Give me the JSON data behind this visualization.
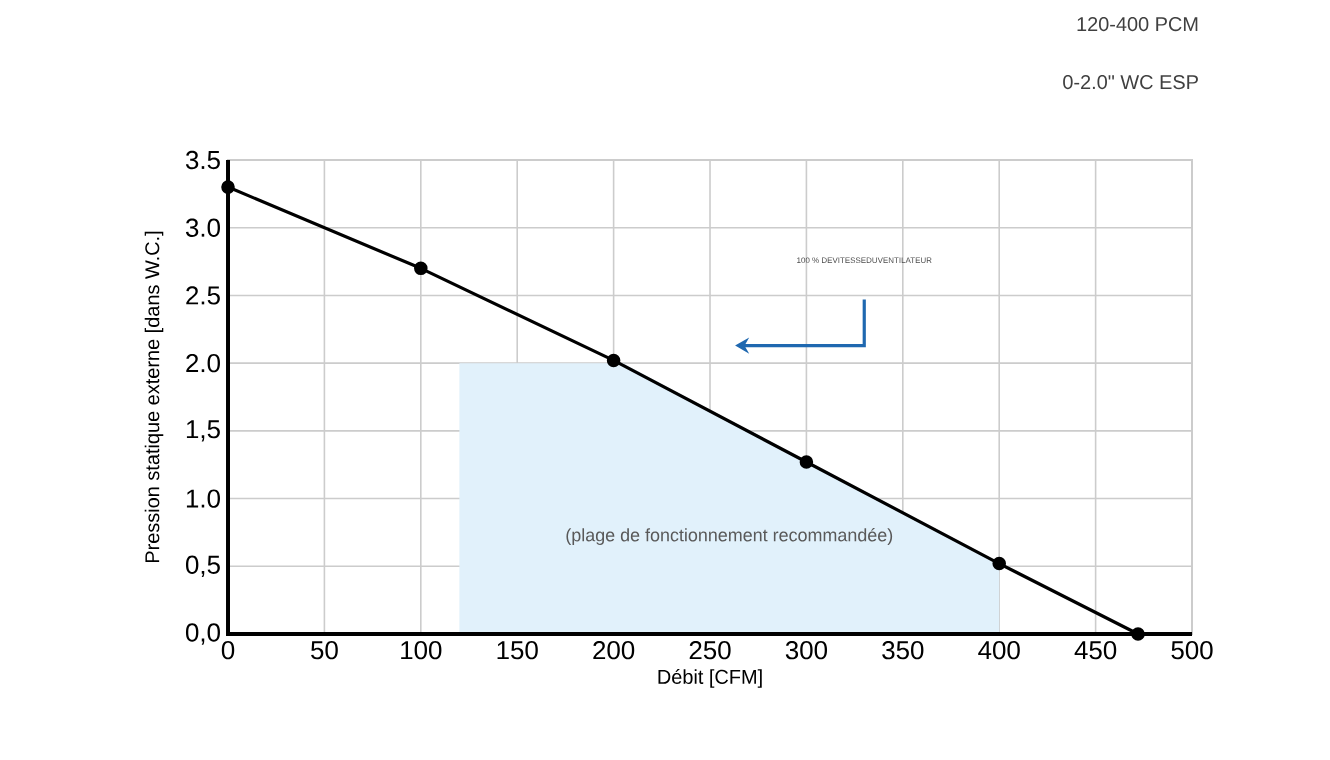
{
  "chart_data": {
    "type": "line",
    "title": "120-400 PCM",
    "subtitle": "0-2.0\" WC ESP",
    "xlabel": "Débit [CFM]",
    "ylabel": "Pression statique externe [dans W.C.]",
    "series": [
      {
        "type": "area",
        "marker": "none",
        "color": "#e1f1fb",
        "x": [
          120,
          205,
          300,
          400
        ],
        "values": [
          2.0,
          2.0,
          1.27,
          0.52
        ]
      },
      {
        "color": "#000000",
        "x": [
          0,
          100,
          200,
          300,
          400,
          472
        ],
        "values": [
          3.3,
          2.7,
          2.02,
          1.27,
          0.52,
          0
        ]
      }
    ],
    "annotations": [
      "(plage de fonctionnement recommandée)",
      "100 % DEVITESSEDUVENTILATEUR"
    ],
    "xlim": [
      0,
      500
    ],
    "xticks": [
      0,
      50,
      100,
      150,
      200,
      250,
      300,
      350,
      400,
      450,
      500
    ],
    "ylim": [
      0,
      3.5
    ],
    "yticks": [
      {
        "value": 0,
        "label": "0,0"
      },
      {
        "value": 0.5,
        "label": "0,5"
      },
      {
        "value": 1.0,
        "label": "1.0"
      },
      {
        "value": 1.5,
        "label": "1,5"
      },
      {
        "value": 2.0,
        "label": "2.0"
      },
      {
        "value": 2.5,
        "label": "2.5"
      },
      {
        "value": 3.0,
        "label": "3.0"
      },
      {
        "value": 3.5,
        "label": "3.5"
      }
    ],
    "grid": true,
    "marker": "circle",
    "line_style": "solid",
    "legend": false
  }
}
